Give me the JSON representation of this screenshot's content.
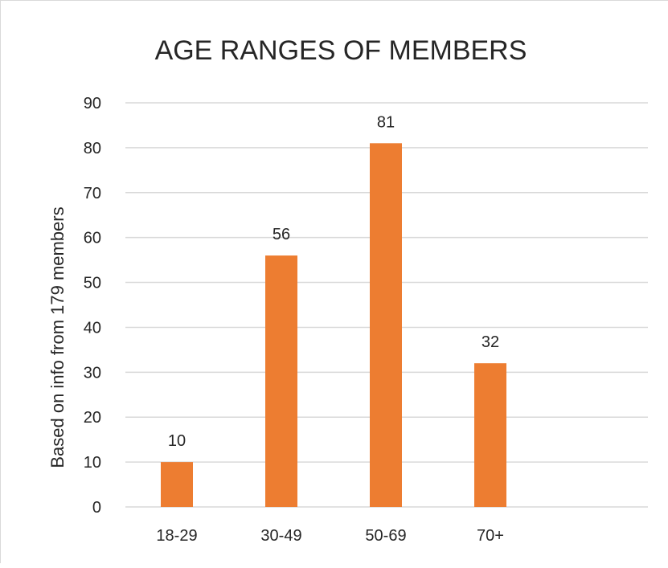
{
  "chart_data": {
    "type": "bar",
    "title": "AGE RANGES OF MEMBERS",
    "xlabel": "",
    "ylabel": "Based on info from 179 members",
    "categories": [
      "18-29",
      "30-49",
      "50-69",
      "70+"
    ],
    "series": [
      {
        "values": [
          10,
          56,
          81,
          32
        ]
      }
    ],
    "data_labels": [
      "10",
      "56",
      "81",
      "32"
    ],
    "y_ticks": [
      0,
      10,
      20,
      30,
      40,
      50,
      60,
      70,
      80,
      90
    ],
    "ylim": [
      0,
      90
    ],
    "grid": true,
    "legend": "none",
    "colors": {
      "bar": "#ED7D31",
      "grid": "#d9d9d9",
      "text": "#262626"
    }
  }
}
